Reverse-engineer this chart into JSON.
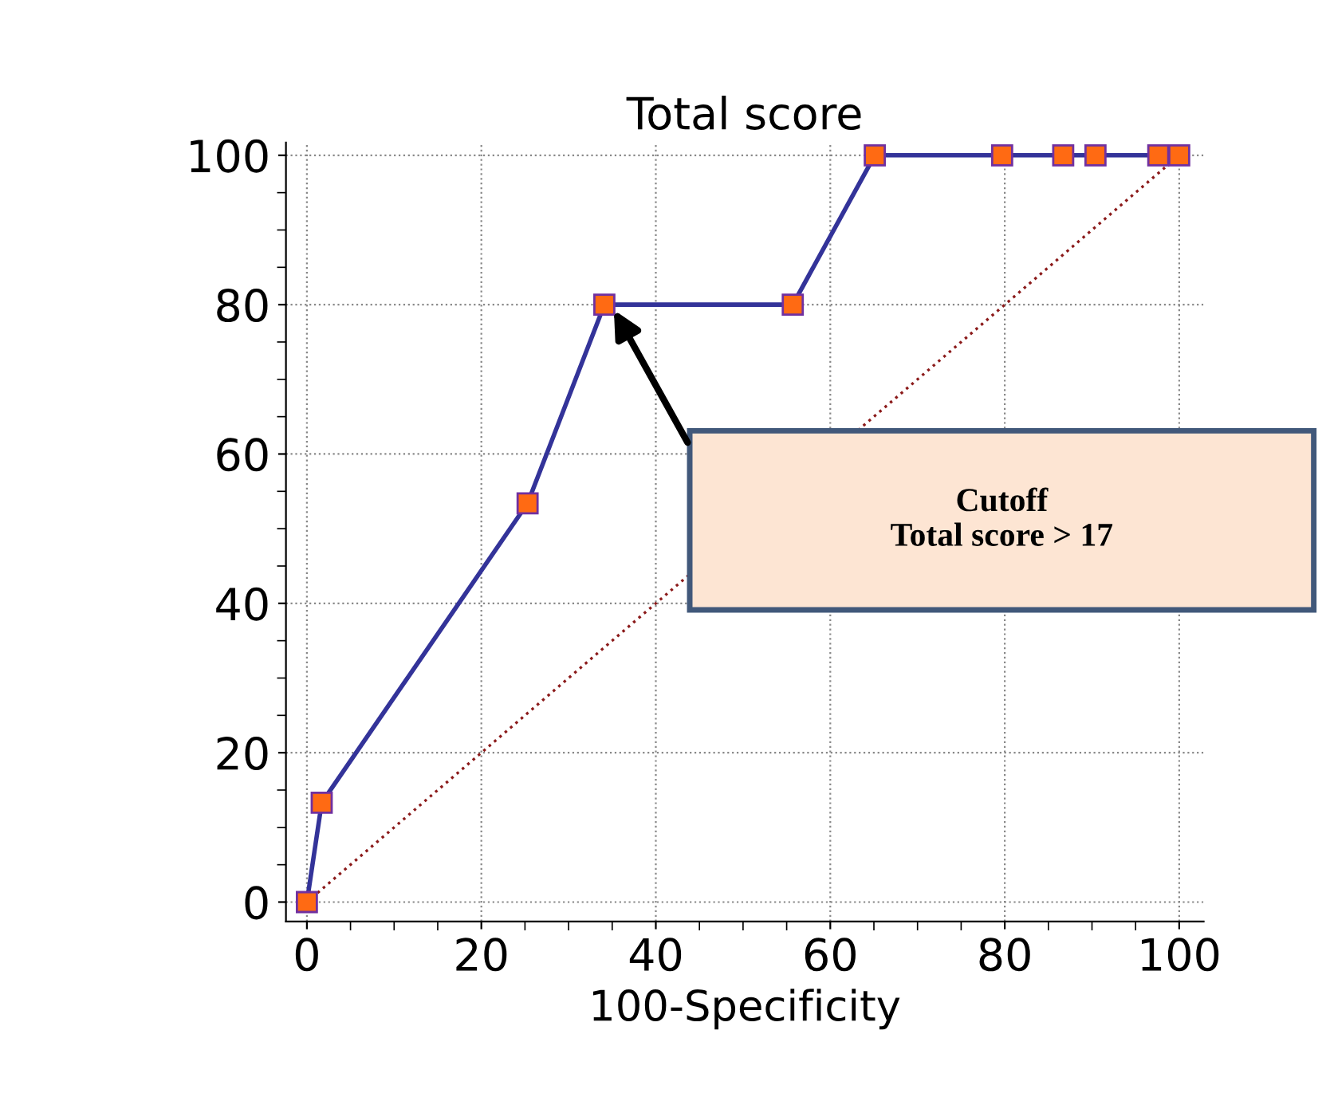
{
  "chart_data": {
    "type": "line",
    "title": "Total score",
    "xlabel": "100-Specificity",
    "series": [
      {
        "color": "#333399",
        "marker": "square",
        "line_style": "solid",
        "x": [
          0,
          1.7,
          25.3,
          34.1,
          55.7,
          65.1,
          79.7,
          86.7,
          90.4,
          97.6,
          100
        ],
        "values": [
          0,
          13.3,
          53.4,
          80,
          80,
          100,
          100,
          100,
          100,
          100,
          100
        ]
      },
      {
        "color": "#8b1a1a",
        "marker": "none",
        "line_style": "dotted",
        "x": [
          0,
          100
        ],
        "values": [
          0,
          100
        ]
      }
    ],
    "annotations": [
      "Cutoff\nTotal score > 17"
    ],
    "xlim": [
      -2.4,
      102.8
    ],
    "ylim": [
      -2.6,
      101.7
    ],
    "xticks": [
      0,
      20,
      40,
      60,
      80,
      100
    ],
    "yticks": [
      0,
      20,
      40,
      60,
      80,
      100
    ],
    "grid": true,
    "legend": false
  }
}
